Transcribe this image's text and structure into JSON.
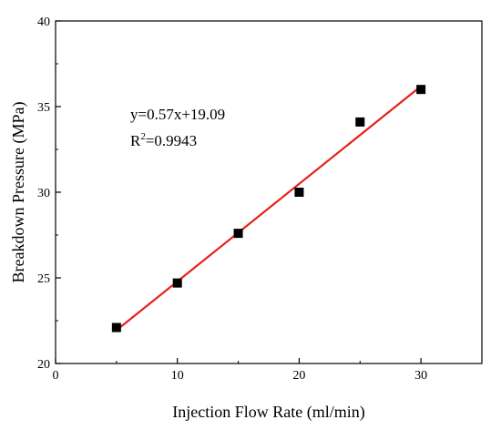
{
  "chart_data": {
    "type": "scatter",
    "title": "",
    "xlabel": "Injection Flow Rate (ml/min)",
    "ylabel": "Breakdown Pressure (MPa)",
    "xlim": [
      0,
      35
    ],
    "ylim": [
      20,
      40
    ],
    "x_ticks": [
      "0",
      "10",
      "20",
      "30"
    ],
    "y_ticks": [
      "20",
      "25",
      "30",
      "35",
      "40"
    ],
    "grid": false,
    "legend": "none",
    "series": [
      {
        "marker": "square",
        "color": "#000000",
        "x": [
          5,
          10,
          15,
          20,
          25,
          30
        ],
        "y": [
          22.1,
          24.7,
          27.6,
          30.0,
          34.1,
          36.0
        ]
      }
    ],
    "fit": {
      "slope": 0.57,
      "intercept": 19.09,
      "x_range": [
        5,
        30
      ],
      "color": "#e8201a"
    },
    "annotations": {
      "equation": "y=0.57x+19.09",
      "r2_prefix": "R",
      "r2_sup": "2",
      "r2_value": "=0.9943"
    }
  }
}
